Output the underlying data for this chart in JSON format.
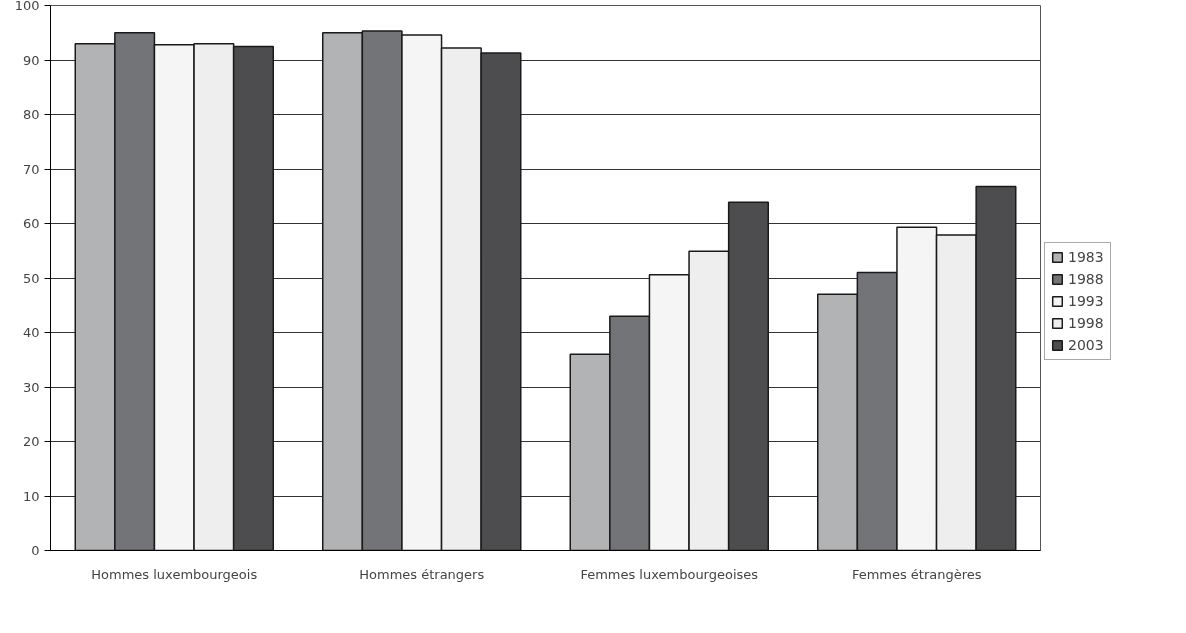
{
  "chart_data": {
    "type": "bar",
    "categories": [
      "Hommes luxembourgeois",
      "Hommes étrangers",
      "Femmes luxembourgeoises",
      "Femmes étrangères"
    ],
    "series": [
      {
        "name": "1983",
        "color": "#b2b3b5",
        "values": [
          93,
          95,
          36,
          47
        ]
      },
      {
        "name": "1988",
        "color": "#737477",
        "values": [
          95,
          95.3,
          43,
          51
        ]
      },
      {
        "name": "1993",
        "color": "#f5f5f5",
        "values": [
          92.8,
          94.6,
          50.6,
          59.3
        ]
      },
      {
        "name": "1998",
        "color": "#edeeed",
        "values": [
          93,
          92.2,
          54.9,
          57.9
        ]
      },
      {
        "name": "2003",
        "color": "#4d4d4f",
        "values": [
          92.5,
          91.3,
          63.9,
          66.8
        ]
      }
    ],
    "ylim": [
      0,
      100
    ],
    "yticks": [
      0,
      10,
      20,
      30,
      40,
      50,
      60,
      70,
      80,
      90,
      100
    ],
    "grid": "y",
    "legend": "right"
  }
}
